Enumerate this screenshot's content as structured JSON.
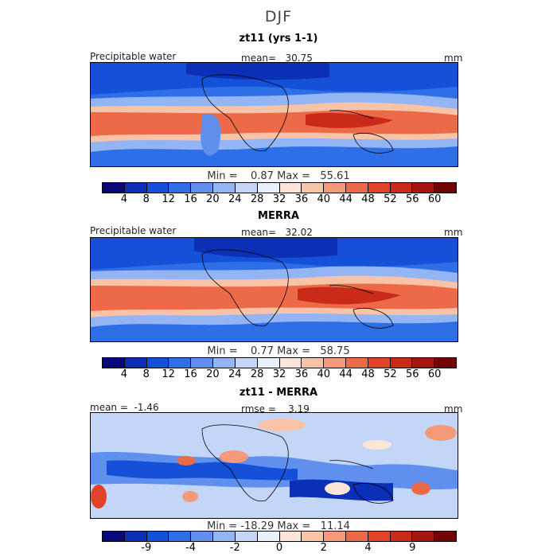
{
  "figure": {
    "title": "DJF"
  },
  "palette": [
    "#08087a",
    "#0b2fb5",
    "#1450d8",
    "#2e6ee6",
    "#5f90ee",
    "#93b5f4",
    "#c3d6f8",
    "#e8f0fc",
    "#fde6d8",
    "#f9c3a7",
    "#f49a78",
    "#ec6a48",
    "#e0432a",
    "#c92a1a",
    "#a4160e",
    "#730404"
  ],
  "panels": [
    {
      "title": "zt11 (yrs 1-1)",
      "left_label": "Precipitable water",
      "center_label": "mean=   30.75",
      "units": "mm",
      "minmax": "Min =    0.87 Max =   55.61",
      "ticks": [
        "4",
        "8",
        "12",
        "16",
        "20",
        "24",
        "28",
        "32",
        "36",
        "40",
        "44",
        "48",
        "52",
        "56",
        "60"
      ]
    },
    {
      "title": "MERRA",
      "left_label": "Precipitable water",
      "center_label": "mean=   32.02",
      "units": "mm",
      "minmax": "Min =    0.77 Max =   58.75",
      "ticks": [
        "4",
        "8",
        "12",
        "16",
        "20",
        "24",
        "28",
        "32",
        "36",
        "40",
        "44",
        "48",
        "52",
        "56",
        "60"
      ]
    },
    {
      "title": "zt11 - MERRA",
      "left_label": "mean =  -1.46",
      "center_label": "rmse =    3.19",
      "units": "mm",
      "minmax": "Min = -18.29 Max =   11.14",
      "ticks": [
        "-9",
        "-4",
        "-2",
        "0",
        "2",
        "4",
        "9"
      ]
    }
  ]
}
